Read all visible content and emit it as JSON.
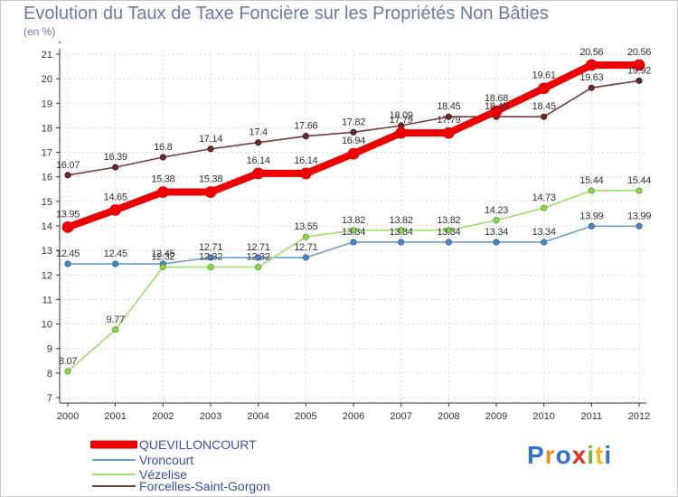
{
  "title": "Evolution du Taux de Taxe Foncière sur les Propriétés Non Bâties",
  "unit_label": "(en %)",
  "logo_text": "Proxiti",
  "colors": {
    "QUEVILLONCOURT": "#ee0000",
    "Vroncourt": "#6a9ccc",
    "Vézelise": "#9ee06a",
    "Forcelles-Saint-Gorgon": "#7a3a3a",
    "axis": "#333333",
    "grid": "#d8d8d8"
  },
  "chart_data": {
    "type": "line",
    "title": "Evolution du Taux de Taxe Foncière sur les Propriétés Non Bâties",
    "ylabel": "(en %)",
    "xlabel": "",
    "ylim": [
      7,
      21
    ],
    "yticks": [
      7,
      8,
      9,
      10,
      11,
      12,
      13,
      14,
      15,
      16,
      17,
      18,
      19,
      20,
      21
    ],
    "categories": [
      "2000",
      "2001",
      "2002",
      "2003",
      "2004",
      "2005",
      "2006",
      "2007",
      "2008",
      "2009",
      "2010",
      "2011",
      "2012"
    ],
    "series": [
      {
        "name": "QUEVILLONCOURT",
        "values": [
          13.95,
          14.65,
          15.38,
          15.38,
          16.14,
          16.14,
          16.94,
          17.79,
          17.79,
          18.68,
          19.61,
          20.56,
          20.56
        ],
        "labels": [
          "13.95",
          "14.65",
          "15.38",
          "15.38",
          "16.14",
          "16.14",
          "16.94",
          "17.79",
          "17.79",
          "18.68",
          "19.61",
          "20.56",
          "20.56"
        ]
      },
      {
        "name": "Vroncourt",
        "values": [
          12.45,
          12.45,
          12.45,
          12.71,
          12.71,
          12.71,
          13.34,
          13.34,
          13.34,
          13.34,
          13.34,
          13.99,
          13.99
        ],
        "labels": [
          "12.45",
          "12.45",
          "12.45",
          "12.71",
          "12.71",
          "12.71",
          "13.34",
          "13.34",
          "13.34",
          "13.34",
          "13.34",
          "13.99",
          "13.99"
        ]
      },
      {
        "name": "Vézelise",
        "values": [
          8.07,
          9.77,
          12.32,
          12.32,
          12.32,
          13.55,
          13.82,
          13.82,
          13.82,
          14.23,
          14.73,
          15.44,
          15.44
        ],
        "labels": [
          "8.07",
          "9.77",
          "12.32",
          "12.32",
          "12.32",
          "13.55",
          "13.82",
          "13.82",
          "13.82",
          "14.23",
          "14.73",
          "15.44",
          "15.44"
        ]
      },
      {
        "name": "Forcelles-Saint-Gorgon",
        "values": [
          16.07,
          16.39,
          16.8,
          17.14,
          17.4,
          17.66,
          17.82,
          18.09,
          18.45,
          18.45,
          18.45,
          19.63,
          19.92
        ],
        "labels": [
          "16.07",
          "16.39",
          "16.8",
          "17.14",
          "17.4",
          "17.66",
          "17.82",
          "18.09",
          "18.45",
          "18.45",
          "18.45",
          "19.63",
          "19.92"
        ]
      }
    ],
    "legend_position": "bottom-left",
    "grid": true
  }
}
